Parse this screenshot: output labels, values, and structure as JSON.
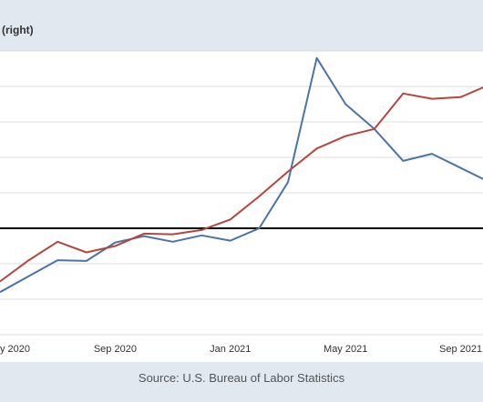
{
  "header": {
    "label": "(right)"
  },
  "source": "Source: U.S. Bureau of Labor Statistics",
  "colors": {
    "blue": "#4a74a8",
    "red": "#b5463f",
    "zero": "#000000",
    "grid": "#dddddd"
  },
  "chart_data": {
    "type": "line",
    "x": [
      "2020-05",
      "2020-06",
      "2020-07",
      "2020-08",
      "2020-09",
      "2020-10",
      "2020-11",
      "2020-12",
      "2021-01",
      "2021-02",
      "2021-03",
      "2021-04",
      "2021-05",
      "2021-06",
      "2021-07",
      "2021-08",
      "2021-09",
      "2021-10"
    ],
    "xticks": [
      {
        "x": "2020-05",
        "label": "y 2020"
      },
      {
        "x": "2020-09",
        "label": "Sep 2020"
      },
      {
        "x": "2021-01",
        "label": "Jan 2021"
      },
      {
        "x": "2021-05",
        "label": "May 2021"
      },
      {
        "x": "2021-09",
        "label": "Sep 2021"
      }
    ],
    "series": [
      {
        "color": "#4a74a8",
        "values": [
          -1.8,
          -1.35,
          -0.9,
          -0.92,
          -0.4,
          -0.22,
          -0.38,
          -0.2,
          -0.35,
          0.0,
          1.3,
          4.8,
          3.5,
          2.8,
          1.9,
          2.1,
          1.7,
          1.3
        ]
      },
      {
        "color": "#b5463f",
        "values": [
          -1.5,
          -0.9,
          -0.38,
          -0.68,
          -0.5,
          -0.15,
          -0.17,
          -0.05,
          0.25,
          0.9,
          1.6,
          2.25,
          2.6,
          2.8,
          3.8,
          3.65,
          3.7,
          4.05
        ]
      }
    ],
    "ylim": [
      -3.0,
      5.0
    ],
    "yticks": [
      -3,
      -2,
      -1,
      0,
      1,
      2,
      3,
      4,
      5
    ],
    "zero_line": 0,
    "grid": true
  }
}
